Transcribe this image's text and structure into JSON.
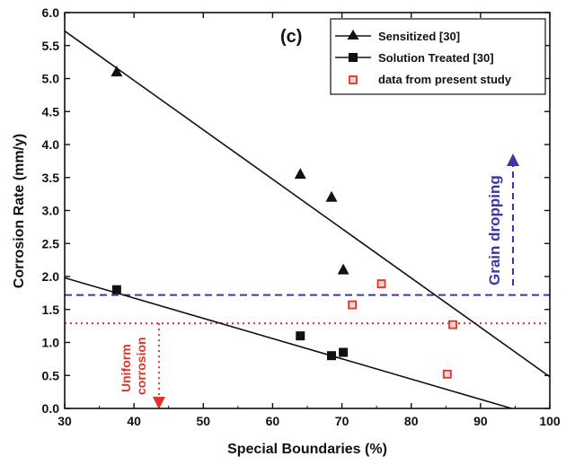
{
  "chart_data": {
    "type": "scatter",
    "panel_label": "(c)",
    "xlabel": "Special Boundaries (%)",
    "ylabel": "Corrosion Rate (mm/y)",
    "xlim": [
      30,
      100
    ],
    "ylim": [
      0,
      6
    ],
    "x_ticks": [
      "30",
      "40",
      "50",
      "60",
      "70",
      "80",
      "90",
      "100"
    ],
    "y_ticks": [
      "0.0",
      "0.5",
      "1.0",
      "1.5",
      "2.0",
      "2.5",
      "3.0",
      "3.5",
      "4.0",
      "4.5",
      "5.0",
      "5.5",
      "6.0"
    ],
    "legend_position": "top-right",
    "series": [
      {
        "name": "Sensitized [30]",
        "marker": "triangle",
        "color": "#111111",
        "points": [
          [
            37.5,
            5.1
          ],
          [
            64,
            3.55
          ],
          [
            68.5,
            3.2
          ],
          [
            70.2,
            2.1
          ]
        ],
        "fit_line": [
          [
            30,
            5.72
          ],
          [
            100,
            0.48
          ]
        ]
      },
      {
        "name": "Solution Treated [30]",
        "marker": "square",
        "color": "#111111",
        "points": [
          [
            37.5,
            1.8
          ],
          [
            64,
            1.1
          ],
          [
            68.5,
            0.8
          ],
          [
            70.2,
            0.85
          ]
        ],
        "fit_line": [
          [
            30,
            1.98
          ],
          [
            94.5,
            0.0
          ]
        ]
      },
      {
        "name": "data from present study",
        "marker": "square-open",
        "color": "#e0342b",
        "points": [
          [
            71.5,
            1.57
          ],
          [
            75.7,
            1.89
          ],
          [
            85.2,
            0.52
          ],
          [
            86,
            1.27
          ]
        ]
      }
    ],
    "reference_lines": [
      {
        "orientation": "horizontal",
        "y": 1.72,
        "color": "#3b37a8",
        "style": "dashed"
      },
      {
        "orientation": "horizontal",
        "y": 1.29,
        "color": "#e0342b",
        "style": "dotted"
      },
      {
        "orientation": "vertical",
        "x": 43.6,
        "y_from": 1.29,
        "y_to": 0.0,
        "color": "#e0342b",
        "style": "dotted"
      }
    ],
    "annotations": [
      {
        "text": "Grain dropping",
        "color": "#3b37a8"
      },
      {
        "text": "Uniform",
        "color": "#e0342b"
      },
      {
        "text": "corrosion",
        "color": "#e0342b"
      }
    ]
  }
}
